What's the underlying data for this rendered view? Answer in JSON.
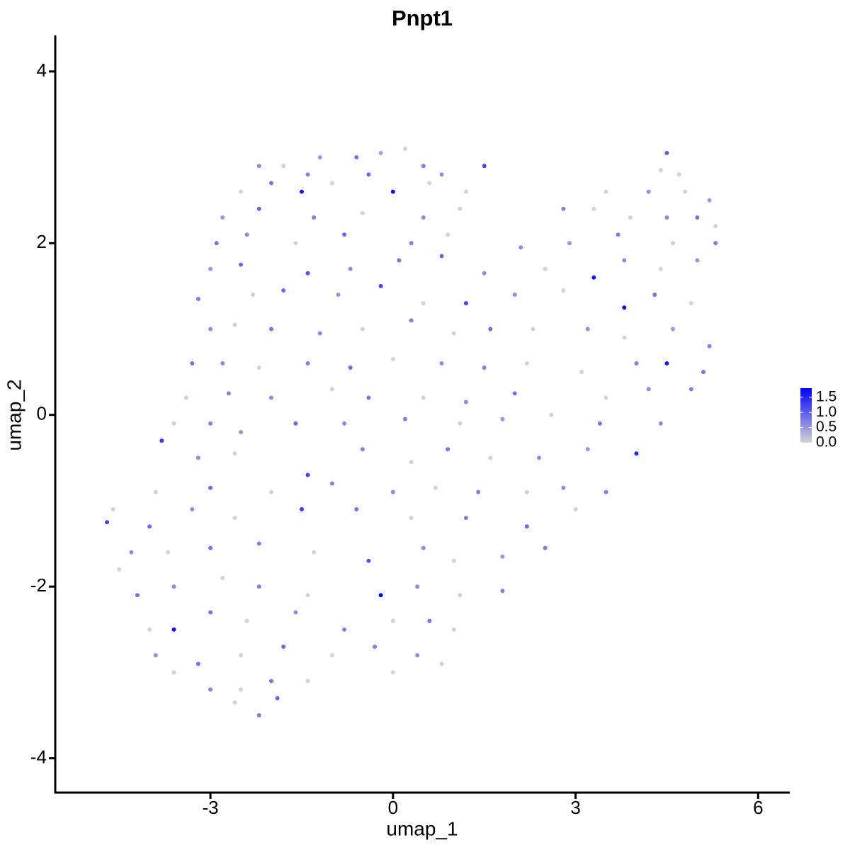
{
  "chart_data": {
    "type": "scatter",
    "title": "Pnpt1",
    "x_label": "umap_1",
    "y_label": "umap_2",
    "xlim": [
      -5.55,
      6.52
    ],
    "ylim": [
      -4.4,
      4.42
    ],
    "xticks": [
      -3,
      0,
      3,
      6
    ],
    "yticks": [
      -4,
      -2,
      0,
      2,
      4
    ],
    "colorscale": {
      "low": "#d3d3d3",
      "high": "#0000ff"
    },
    "clim": [
      0,
      1.8
    ],
    "colorbar_ticks": [
      {
        "value": 0,
        "label": "0.0"
      },
      {
        "value": 0.5,
        "label": "0.5"
      },
      {
        "value": 1,
        "label": "1.0"
      },
      {
        "value": 1.5,
        "label": "1.5"
      }
    ],
    "x": [
      -1.2,
      -0.6,
      -0.2,
      0.2,
      0.5,
      4.5,
      -2.2,
      -1.8,
      -1.4,
      -0.4,
      0.8,
      1.5,
      4.4,
      4.7,
      -2.5,
      -2.0,
      -1.5,
      -1.0,
      0.0,
      0.6,
      1.2,
      3.5,
      4.2,
      4.8,
      5.2,
      -2.8,
      -2.2,
      -1.3,
      -0.5,
      0.5,
      1.1,
      2.8,
      3.3,
      3.9,
      4.5,
      5.0,
      5.3,
      -2.9,
      -2.4,
      -1.6,
      -0.8,
      0.3,
      0.9,
      2.1,
      2.9,
      3.7,
      4.6,
      5.3,
      -3.0,
      -2.5,
      -1.4,
      -0.7,
      0.1,
      0.8,
      1.5,
      2.5,
      3.3,
      3.8,
      4.4,
      5.0,
      -3.2,
      -2.3,
      -1.8,
      -0.9,
      -0.2,
      0.5,
      1.2,
      2.0,
      2.8,
      3.8,
      4.3,
      4.9,
      -3.0,
      -2.6,
      -2.0,
      -1.2,
      -0.5,
      0.3,
      1.0,
      1.6,
      2.3,
      3.2,
      3.8,
      4.6,
      5.2,
      -3.3,
      -2.8,
      -2.2,
      -1.4,
      -0.7,
      0.0,
      0.8,
      1.5,
      2.2,
      3.1,
      4.0,
      4.5,
      5.1,
      -3.4,
      -2.7,
      -2.0,
      -1.0,
      -0.4,
      0.5,
      1.2,
      2.0,
      3.5,
      4.2,
      4.9,
      -3.6,
      -3.0,
      -2.5,
      -1.6,
      -0.8,
      0.2,
      1.1,
      1.8,
      2.6,
      3.4,
      4.4,
      -3.8,
      -3.2,
      -2.6,
      -1.4,
      -0.5,
      0.3,
      0.9,
      1.6,
      2.4,
      3.2,
      4.0,
      -3.9,
      -3.0,
      -2.0,
      -1.0,
      0.0,
      0.7,
      1.4,
      2.2,
      2.8,
      3.5,
      -4.7,
      -4.6,
      -4.0,
      -3.3,
      -2.6,
      -1.5,
      -0.6,
      0.3,
      1.2,
      2.2,
      3.0,
      -4.3,
      -3.7,
      -3.0,
      -2.2,
      -1.3,
      -0.4,
      0.5,
      1.0,
      1.8,
      2.5,
      -4.5,
      -4.2,
      -3.6,
      -2.8,
      -2.2,
      -1.4,
      -0.2,
      0.4,
      1.1,
      1.8,
      -4.0,
      -3.6,
      -3.0,
      -2.4,
      -1.6,
      -0.8,
      0.0,
      0.6,
      1.0,
      -3.9,
      -3.2,
      -2.5,
      -1.8,
      -1.0,
      -0.3,
      0.4,
      0.8,
      -3.6,
      -3.0,
      -2.5,
      -2.0,
      -1.4,
      0.0,
      -2.6,
      -2.2,
      -1.9
    ],
    "y": [
      3.0,
      3.0,
      3.05,
      3.1,
      2.9,
      3.05,
      2.9,
      2.9,
      2.8,
      2.8,
      2.8,
      2.9,
      2.85,
      2.8,
      2.6,
      2.7,
      2.6,
      2.7,
      2.6,
      2.7,
      2.6,
      2.6,
      2.6,
      2.6,
      2.5,
      2.3,
      2.4,
      2.3,
      2.35,
      2.3,
      2.4,
      2.4,
      2.4,
      2.3,
      2.3,
      2.3,
      2.2,
      2.0,
      2.1,
      2.0,
      2.1,
      2.0,
      2.1,
      1.95,
      2.0,
      2.1,
      2.0,
      2.0,
      1.7,
      1.75,
      1.65,
      1.7,
      1.8,
      1.85,
      1.65,
      1.7,
      1.6,
      1.8,
      1.7,
      1.8,
      1.35,
      1.4,
      1.45,
      1.4,
      1.5,
      1.3,
      1.3,
      1.4,
      1.45,
      1.25,
      1.4,
      1.3,
      1.0,
      1.05,
      1.0,
      0.95,
      1.0,
      1.1,
      0.95,
      1.0,
      1.0,
      1.0,
      0.9,
      1.0,
      0.8,
      0.6,
      0.6,
      0.55,
      0.6,
      0.55,
      0.65,
      0.6,
      0.55,
      0.6,
      0.5,
      0.6,
      0.6,
      0.5,
      0.2,
      0.25,
      0.2,
      0.3,
      0.2,
      0.2,
      0.15,
      0.25,
      0.2,
      0.3,
      0.3,
      -0.1,
      -0.1,
      -0.2,
      -0.1,
      -0.1,
      -0.05,
      -0.1,
      -0.05,
      0.0,
      -0.1,
      -0.1,
      -0.3,
      -0.5,
      -0.45,
      -0.7,
      -0.4,
      -0.55,
      -0.4,
      -0.5,
      -0.5,
      -0.4,
      -0.45,
      -0.9,
      -0.85,
      -0.9,
      -0.8,
      -0.9,
      -0.85,
      -0.9,
      -0.9,
      -0.85,
      -0.9,
      -1.25,
      -1.1,
      -1.3,
      -1.1,
      -1.2,
      -1.1,
      -1.1,
      -1.2,
      -1.2,
      -1.3,
      -1.1,
      -1.6,
      -1.6,
      -1.55,
      -1.5,
      -1.6,
      -1.7,
      -1.55,
      -1.7,
      -1.65,
      -1.55,
      -1.8,
      -2.1,
      -2.0,
      -1.9,
      -2.0,
      -2.1,
      -2.1,
      -2.0,
      -2.1,
      -2.05,
      -2.5,
      -2.5,
      -2.3,
      -2.4,
      -2.3,
      -2.5,
      -2.4,
      -2.4,
      -2.5,
      -2.8,
      -2.9,
      -2.8,
      -2.7,
      -2.8,
      -2.7,
      -2.8,
      -2.9,
      -3.0,
      -3.2,
      -3.2,
      -3.1,
      -3.1,
      -3.0,
      -3.35,
      -3.5,
      -3.3
    ],
    "values": [
      0.5,
      0.8,
      0.4,
      0,
      0.7,
      1.0,
      0.6,
      0,
      0.7,
      0.9,
      0.6,
      1.2,
      0,
      0,
      0,
      0.8,
      1.6,
      0,
      1.7,
      0,
      0,
      0,
      0.6,
      0,
      0.5,
      0.5,
      0.9,
      0.7,
      0,
      0.6,
      0,
      0.7,
      0,
      0,
      0.6,
      0.8,
      0,
      0.8,
      0.6,
      0,
      0.9,
      0.7,
      0,
      0.6,
      0.5,
      0.7,
      0,
      0.7,
      0.5,
      0.9,
      1.1,
      0.6,
      0.8,
      0.9,
      0.6,
      0,
      1.6,
      0.6,
      0,
      0.5,
      0.7,
      0,
      0.9,
      0.5,
      1.2,
      0,
      1.2,
      0.6,
      0,
      1.7,
      0.8,
      0,
      0.6,
      0,
      0.8,
      0.6,
      0,
      0.7,
      0,
      0.9,
      0,
      0.6,
      0,
      0.5,
      0.7,
      0.8,
      0.6,
      0,
      0.7,
      0.9,
      0,
      0.6,
      0.7,
      0,
      0,
      0.7,
      1.6,
      0.8,
      0,
      0.7,
      0.6,
      0,
      0.8,
      0,
      0.6,
      0.8,
      0,
      0.6,
      0.7,
      0,
      0.7,
      0.5,
      0.9,
      0.6,
      0.7,
      0,
      0.5,
      0,
      0.8,
      0.6,
      1.3,
      0.6,
      0,
      1.2,
      0.7,
      0,
      0.8,
      0,
      0.6,
      0.5,
      1.5,
      0,
      0.9,
      0,
      0.7,
      0.6,
      0,
      0.7,
      0,
      0.6,
      0.7,
      1.2,
      0,
      0.9,
      0.6,
      0,
      1.3,
      0.8,
      0,
      0.7,
      0.9,
      0,
      0.6,
      0,
      0.8,
      0.7,
      0,
      1.1,
      0.6,
      0,
      0.5,
      0.7,
      0,
      0.8,
      0.6,
      0,
      0.7,
      0,
      1.8,
      0.6,
      0,
      0.7,
      0,
      1.6,
      0.8,
      0,
      0.6,
      0.7,
      0,
      0.8,
      0,
      0.6,
      0.8,
      0,
      0.9,
      0,
      0.7,
      0.6,
      0,
      0,
      0.7,
      0,
      0.8,
      0,
      0,
      0,
      0.7,
      0.9
    ]
  }
}
